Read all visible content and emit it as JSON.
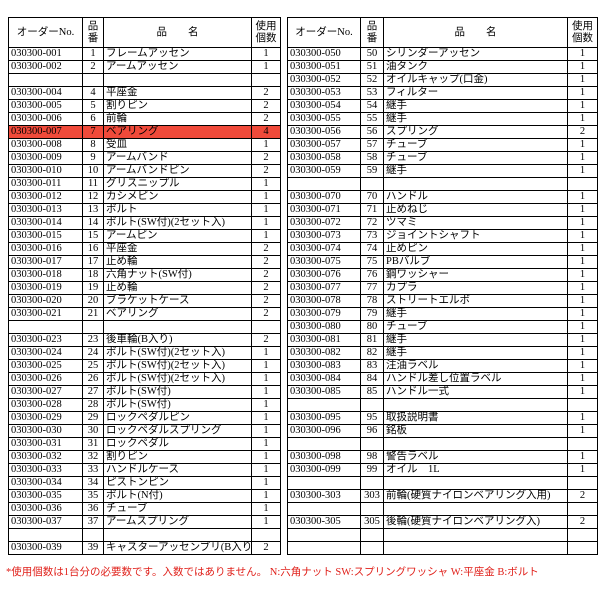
{
  "tables": [
    {
      "header": [
        "オーダーNo.",
        "品番",
        "品　　名",
        "使用個数"
      ],
      "highlight": {
        "row": 6,
        "color": "#f04a3a"
      },
      "rows": [
        [
          "030300-001",
          1,
          "フレームアッセン",
          1
        ],
        [
          "030300-002",
          2,
          "アームアッセン",
          1
        ],
        null,
        [
          "030300-004",
          4,
          "平座金",
          2
        ],
        [
          "030300-005",
          5,
          "割りピン",
          2
        ],
        [
          "030300-006",
          6,
          "前輪",
          2
        ],
        [
          "030300-007",
          7,
          "ベアリング",
          4
        ],
        [
          "030300-008",
          8,
          "受皿",
          1
        ],
        [
          "030300-009",
          9,
          "アームバンド",
          2
        ],
        [
          "030300-010",
          10,
          "アームバンドピン",
          2
        ],
        [
          "030300-011",
          11,
          "グリスニップル",
          1
        ],
        [
          "030300-012",
          12,
          "カシメピン",
          1
        ],
        [
          "030300-013",
          13,
          "ボルト",
          1
        ],
        [
          "030300-014",
          14,
          "ボルト(SW付)(2セット入)",
          1
        ],
        [
          "030300-015",
          15,
          "アームピン",
          1
        ],
        [
          "030300-016",
          16,
          "平座金",
          2
        ],
        [
          "030300-017",
          17,
          "止め輪",
          2
        ],
        [
          "030300-018",
          18,
          "六角ナット(SW付)",
          2
        ],
        [
          "030300-019",
          19,
          "止め輪",
          2
        ],
        [
          "030300-020",
          20,
          "ブラケットケース",
          2
        ],
        [
          "030300-021",
          21,
          "ベアリング",
          2
        ],
        null,
        [
          "030300-023",
          23,
          "後車輪(B入り)",
          2
        ],
        [
          "030300-024",
          24,
          "ボルト(SW付)(2セット入)",
          1
        ],
        [
          "030300-025",
          25,
          "ボルト(SW付)(2セット入)",
          1
        ],
        [
          "030300-026",
          26,
          "ボルト(SW付)(2セット入)",
          1
        ],
        [
          "030300-027",
          27,
          "ボルト(SW付)",
          1
        ],
        [
          "030300-028",
          28,
          "ボルト(SW付)",
          1
        ],
        [
          "030300-029",
          29,
          "ロックペダルピン",
          1
        ],
        [
          "030300-030",
          30,
          "ロックペダルスプリング",
          1
        ],
        [
          "030300-031",
          31,
          "ロックペダル",
          1
        ],
        [
          "030300-032",
          32,
          "割りピン",
          1
        ],
        [
          "030300-033",
          33,
          "ハンドルケース",
          1
        ],
        [
          "030300-034",
          34,
          "ピストンピン",
          1
        ],
        [
          "030300-035",
          35,
          "ボルト(N付)",
          1
        ],
        [
          "030300-036",
          36,
          "チューブ",
          1
        ],
        [
          "030300-037",
          37,
          "アームスプリング",
          1
        ],
        null,
        [
          "030300-039",
          39,
          "キャスターアッセンブリ(B入り)",
          2
        ]
      ]
    },
    {
      "header": [
        "オーダーNo.",
        "品番",
        "品　　名",
        "使用個数"
      ],
      "rows": [
        [
          "030300-050",
          50,
          "シリンダーアッセン",
          1
        ],
        [
          "030300-051",
          51,
          "油タンク",
          1
        ],
        [
          "030300-052",
          52,
          "オイルキャップ(口金)",
          1
        ],
        [
          "030300-053",
          53,
          "フィルター",
          1
        ],
        [
          "030300-054",
          54,
          "継手",
          1
        ],
        [
          "030300-055",
          55,
          "継手",
          1
        ],
        [
          "030300-056",
          56,
          "スプリング",
          2
        ],
        [
          "030300-057",
          57,
          "チューブ",
          1
        ],
        [
          "030300-058",
          58,
          "チューブ",
          1
        ],
        [
          "030300-059",
          59,
          "継手",
          1
        ],
        null,
        [
          "030300-070",
          70,
          "ハンドル",
          1
        ],
        [
          "030300-071",
          71,
          "止めねじ",
          1
        ],
        [
          "030300-072",
          72,
          "ツマミ",
          1
        ],
        [
          "030300-073",
          73,
          "ジョイントシャフト",
          1
        ],
        [
          "030300-074",
          74,
          "止めピン",
          1
        ],
        [
          "030300-075",
          75,
          "PBバルブ",
          1
        ],
        [
          "030300-076",
          76,
          "鋼ワッシャー",
          1
        ],
        [
          "030300-077",
          77,
          "カプラ",
          1
        ],
        [
          "030300-078",
          78,
          "ストリートエルボ",
          1
        ],
        [
          "030300-079",
          79,
          "継手",
          1
        ],
        [
          "030300-080",
          80,
          "チューブ",
          1
        ],
        [
          "030300-081",
          81,
          "継手",
          1
        ],
        [
          "030300-082",
          82,
          "継手",
          1
        ],
        [
          "030300-083",
          83,
          "注油ラベル",
          1
        ],
        [
          "030300-084",
          84,
          "ハンドル差し位置ラベル",
          1
        ],
        [
          "030300-085",
          85,
          "ハンドル一式",
          1
        ],
        null,
        [
          "030300-095",
          95,
          "取扱説明書",
          1
        ],
        [
          "030300-096",
          96,
          "銘板",
          1
        ],
        null,
        [
          "030300-098",
          98,
          "警告ラベル",
          1
        ],
        [
          "030300-099",
          99,
          "オイル　1L",
          1
        ],
        null,
        [
          "030300-303",
          303,
          "前輪(硬質ナイロンベアリング入用)",
          2
        ],
        null,
        [
          "030300-305",
          305,
          "後輪(硬質ナイロンベアリング入)",
          2
        ],
        null,
        null
      ]
    }
  ],
  "footnote": "*使用個数は1台分の必要数です。入数ではありません。 N:六角ナット SW:スプリングワッシャ W:平座金 B:ボルト"
}
